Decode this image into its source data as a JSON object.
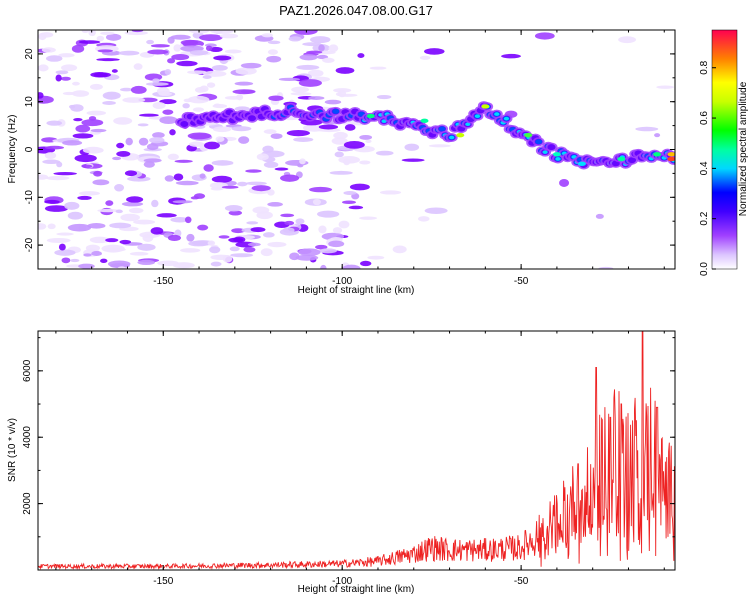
{
  "title": "PAZ1.2026.047.08.00.G17",
  "chart_data": [
    {
      "type": "heatmap",
      "name": "spectrogram",
      "xlabel": "Height of straight line (km)",
      "ylabel": "Frequency (Hz)",
      "xlim": [
        -185,
        -7
      ],
      "ylim": [
        -25,
        25
      ],
      "xticks": [
        -150,
        -100,
        -50
      ],
      "yticks": [
        20,
        10,
        0,
        -10,
        -20
      ],
      "grid": false,
      "ridge": {
        "description": "main high-amplitude track",
        "x": [
          -145,
          -130,
          -115,
          -100,
          -90,
          -80,
          -70,
          -60,
          -50,
          -40,
          -30,
          -20,
          -10,
          -7
        ],
        "y": [
          6,
          7,
          8,
          7,
          7,
          5,
          3,
          9,
          3,
          -1,
          -3,
          -2,
          -1,
          -2
        ]
      },
      "colorbar": {
        "label": "Normalized spectral amplitude",
        "range": [
          0,
          0.95
        ],
        "ticks": [
          0,
          0.2,
          0.4,
          0.6,
          0.8
        ],
        "colors": [
          "#ffffff",
          "#cc99ff",
          "#8800ff",
          "#0000ff",
          "#00ffff",
          "#00ff00",
          "#ffff00",
          "#ff8000",
          "#ff0040"
        ]
      }
    },
    {
      "type": "line",
      "name": "snr",
      "xlabel": "Height of straight line (km)",
      "ylabel": "SNR (10 * v/v)",
      "xlim": [
        -185,
        -7
      ],
      "ylim": [
        0,
        7200
      ],
      "xticks": [
        -150,
        -100,
        -50
      ],
      "yticks": [
        2000,
        4000,
        6000
      ],
      "color": "#ee2222",
      "envelope": {
        "x": [
          -185,
          -150,
          -120,
          -100,
          -90,
          -80,
          -75,
          -70,
          -60,
          -50,
          -45,
          -40,
          -35,
          -30,
          -25,
          -20,
          -15,
          -10,
          -7
        ],
        "y": [
          150,
          150,
          200,
          250,
          350,
          650,
          900,
          800,
          800,
          900,
          1400,
          2000,
          2800,
          3200,
          5000,
          4000,
          5500,
          3200,
          3300
        ]
      }
    }
  ]
}
